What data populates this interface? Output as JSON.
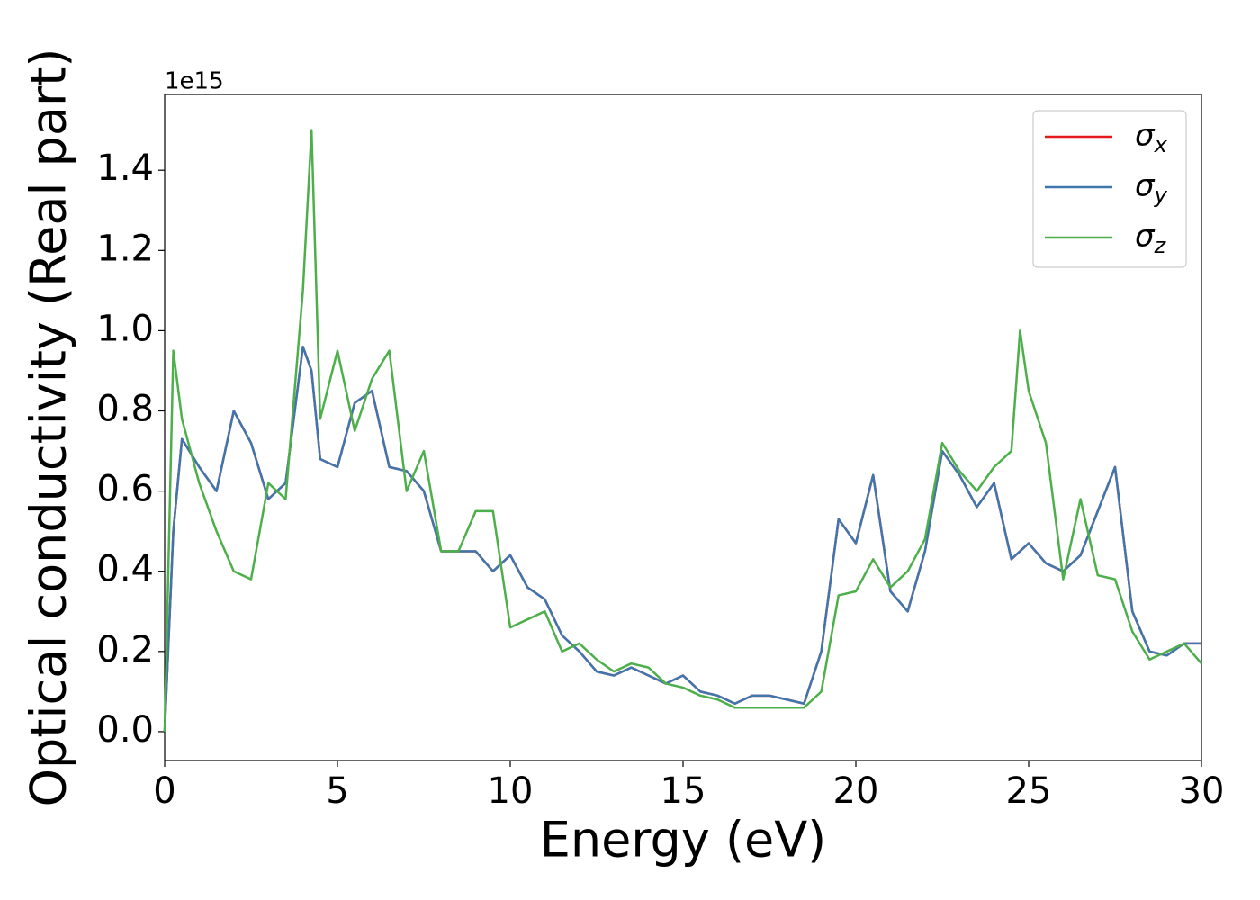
{
  "chart_data": {
    "type": "line",
    "xlabel": "Energy (eV)",
    "ylabel": "Optical conductivity (Real part)",
    "offset_label": "1e15",
    "x": [
      0,
      0.25,
      0.5,
      1.0,
      1.5,
      2.0,
      2.5,
      3.0,
      3.5,
      4.0,
      4.25,
      4.5,
      5.0,
      5.5,
      6.0,
      6.5,
      7.0,
      7.5,
      8.0,
      8.5,
      9.0,
      9.5,
      10.0,
      10.5,
      11.0,
      11.5,
      12.0,
      12.5,
      13.0,
      13.5,
      14.0,
      14.5,
      15.0,
      15.5,
      16.0,
      16.5,
      17.0,
      17.5,
      18.0,
      18.5,
      19.0,
      19.5,
      20.0,
      20.5,
      21.0,
      21.5,
      22.0,
      22.5,
      23.0,
      23.5,
      24.0,
      24.5,
      24.75,
      25.0,
      25.5,
      26.0,
      26.5,
      27.0,
      27.5,
      28.0,
      28.5,
      29.0,
      29.5,
      30.0
    ],
    "series": [
      {
        "name": "σx",
        "color": "#e41a1c",
        "values": [
          0.0,
          0.5,
          0.73,
          0.66,
          0.6,
          0.8,
          0.72,
          0.58,
          0.62,
          0.96,
          0.9,
          0.68,
          0.66,
          0.82,
          0.85,
          0.66,
          0.65,
          0.6,
          0.45,
          0.45,
          0.45,
          0.4,
          0.44,
          0.36,
          0.33,
          0.24,
          0.2,
          0.15,
          0.14,
          0.16,
          0.14,
          0.12,
          0.14,
          0.1,
          0.09,
          0.07,
          0.09,
          0.09,
          0.08,
          0.07,
          0.2,
          0.53,
          0.47,
          0.64,
          0.35,
          0.3,
          0.45,
          0.7,
          0.64,
          0.56,
          0.62,
          0.43,
          0.45,
          0.47,
          0.42,
          0.4,
          0.44,
          0.55,
          0.66,
          0.3,
          0.2,
          0.19,
          0.22,
          0.22
        ]
      },
      {
        "name": "σy",
        "color": "#3f76ad",
        "values": [
          0.0,
          0.5,
          0.73,
          0.66,
          0.6,
          0.8,
          0.72,
          0.58,
          0.62,
          0.96,
          0.9,
          0.68,
          0.66,
          0.82,
          0.85,
          0.66,
          0.65,
          0.6,
          0.45,
          0.45,
          0.45,
          0.4,
          0.44,
          0.36,
          0.33,
          0.24,
          0.2,
          0.15,
          0.14,
          0.16,
          0.14,
          0.12,
          0.14,
          0.1,
          0.09,
          0.07,
          0.09,
          0.09,
          0.08,
          0.07,
          0.2,
          0.53,
          0.47,
          0.64,
          0.35,
          0.3,
          0.45,
          0.7,
          0.64,
          0.56,
          0.62,
          0.43,
          0.45,
          0.47,
          0.42,
          0.4,
          0.44,
          0.55,
          0.66,
          0.3,
          0.2,
          0.19,
          0.22,
          0.22
        ]
      },
      {
        "name": "σz",
        "color": "#4daf4a",
        "values": [
          0.0,
          0.95,
          0.78,
          0.62,
          0.5,
          0.4,
          0.38,
          0.62,
          0.58,
          1.1,
          1.5,
          0.78,
          0.95,
          0.75,
          0.88,
          0.95,
          0.6,
          0.7,
          0.45,
          0.45,
          0.55,
          0.55,
          0.26,
          0.28,
          0.3,
          0.2,
          0.22,
          0.18,
          0.15,
          0.17,
          0.16,
          0.12,
          0.11,
          0.09,
          0.08,
          0.06,
          0.06,
          0.06,
          0.06,
          0.06,
          0.1,
          0.34,
          0.35,
          0.43,
          0.36,
          0.4,
          0.48,
          0.72,
          0.65,
          0.6,
          0.66,
          0.7,
          1.0,
          0.85,
          0.72,
          0.38,
          0.58,
          0.39,
          0.38,
          0.25,
          0.18,
          0.2,
          0.22,
          0.17
        ]
      }
    ],
    "xlim": [
      0,
      30
    ],
    "xticks": [
      0,
      5,
      10,
      15,
      20,
      25,
      30
    ],
    "ylim": [
      -0.072,
      1.589
    ],
    "yticks": [
      {
        "value": 0,
        "label": "0.0"
      },
      0.2,
      0.4,
      0.6,
      0.8,
      {
        "value": 1,
        "label": "1.0"
      },
      1.2,
      1.4
    ],
    "grid": false,
    "legend": "upper right"
  }
}
